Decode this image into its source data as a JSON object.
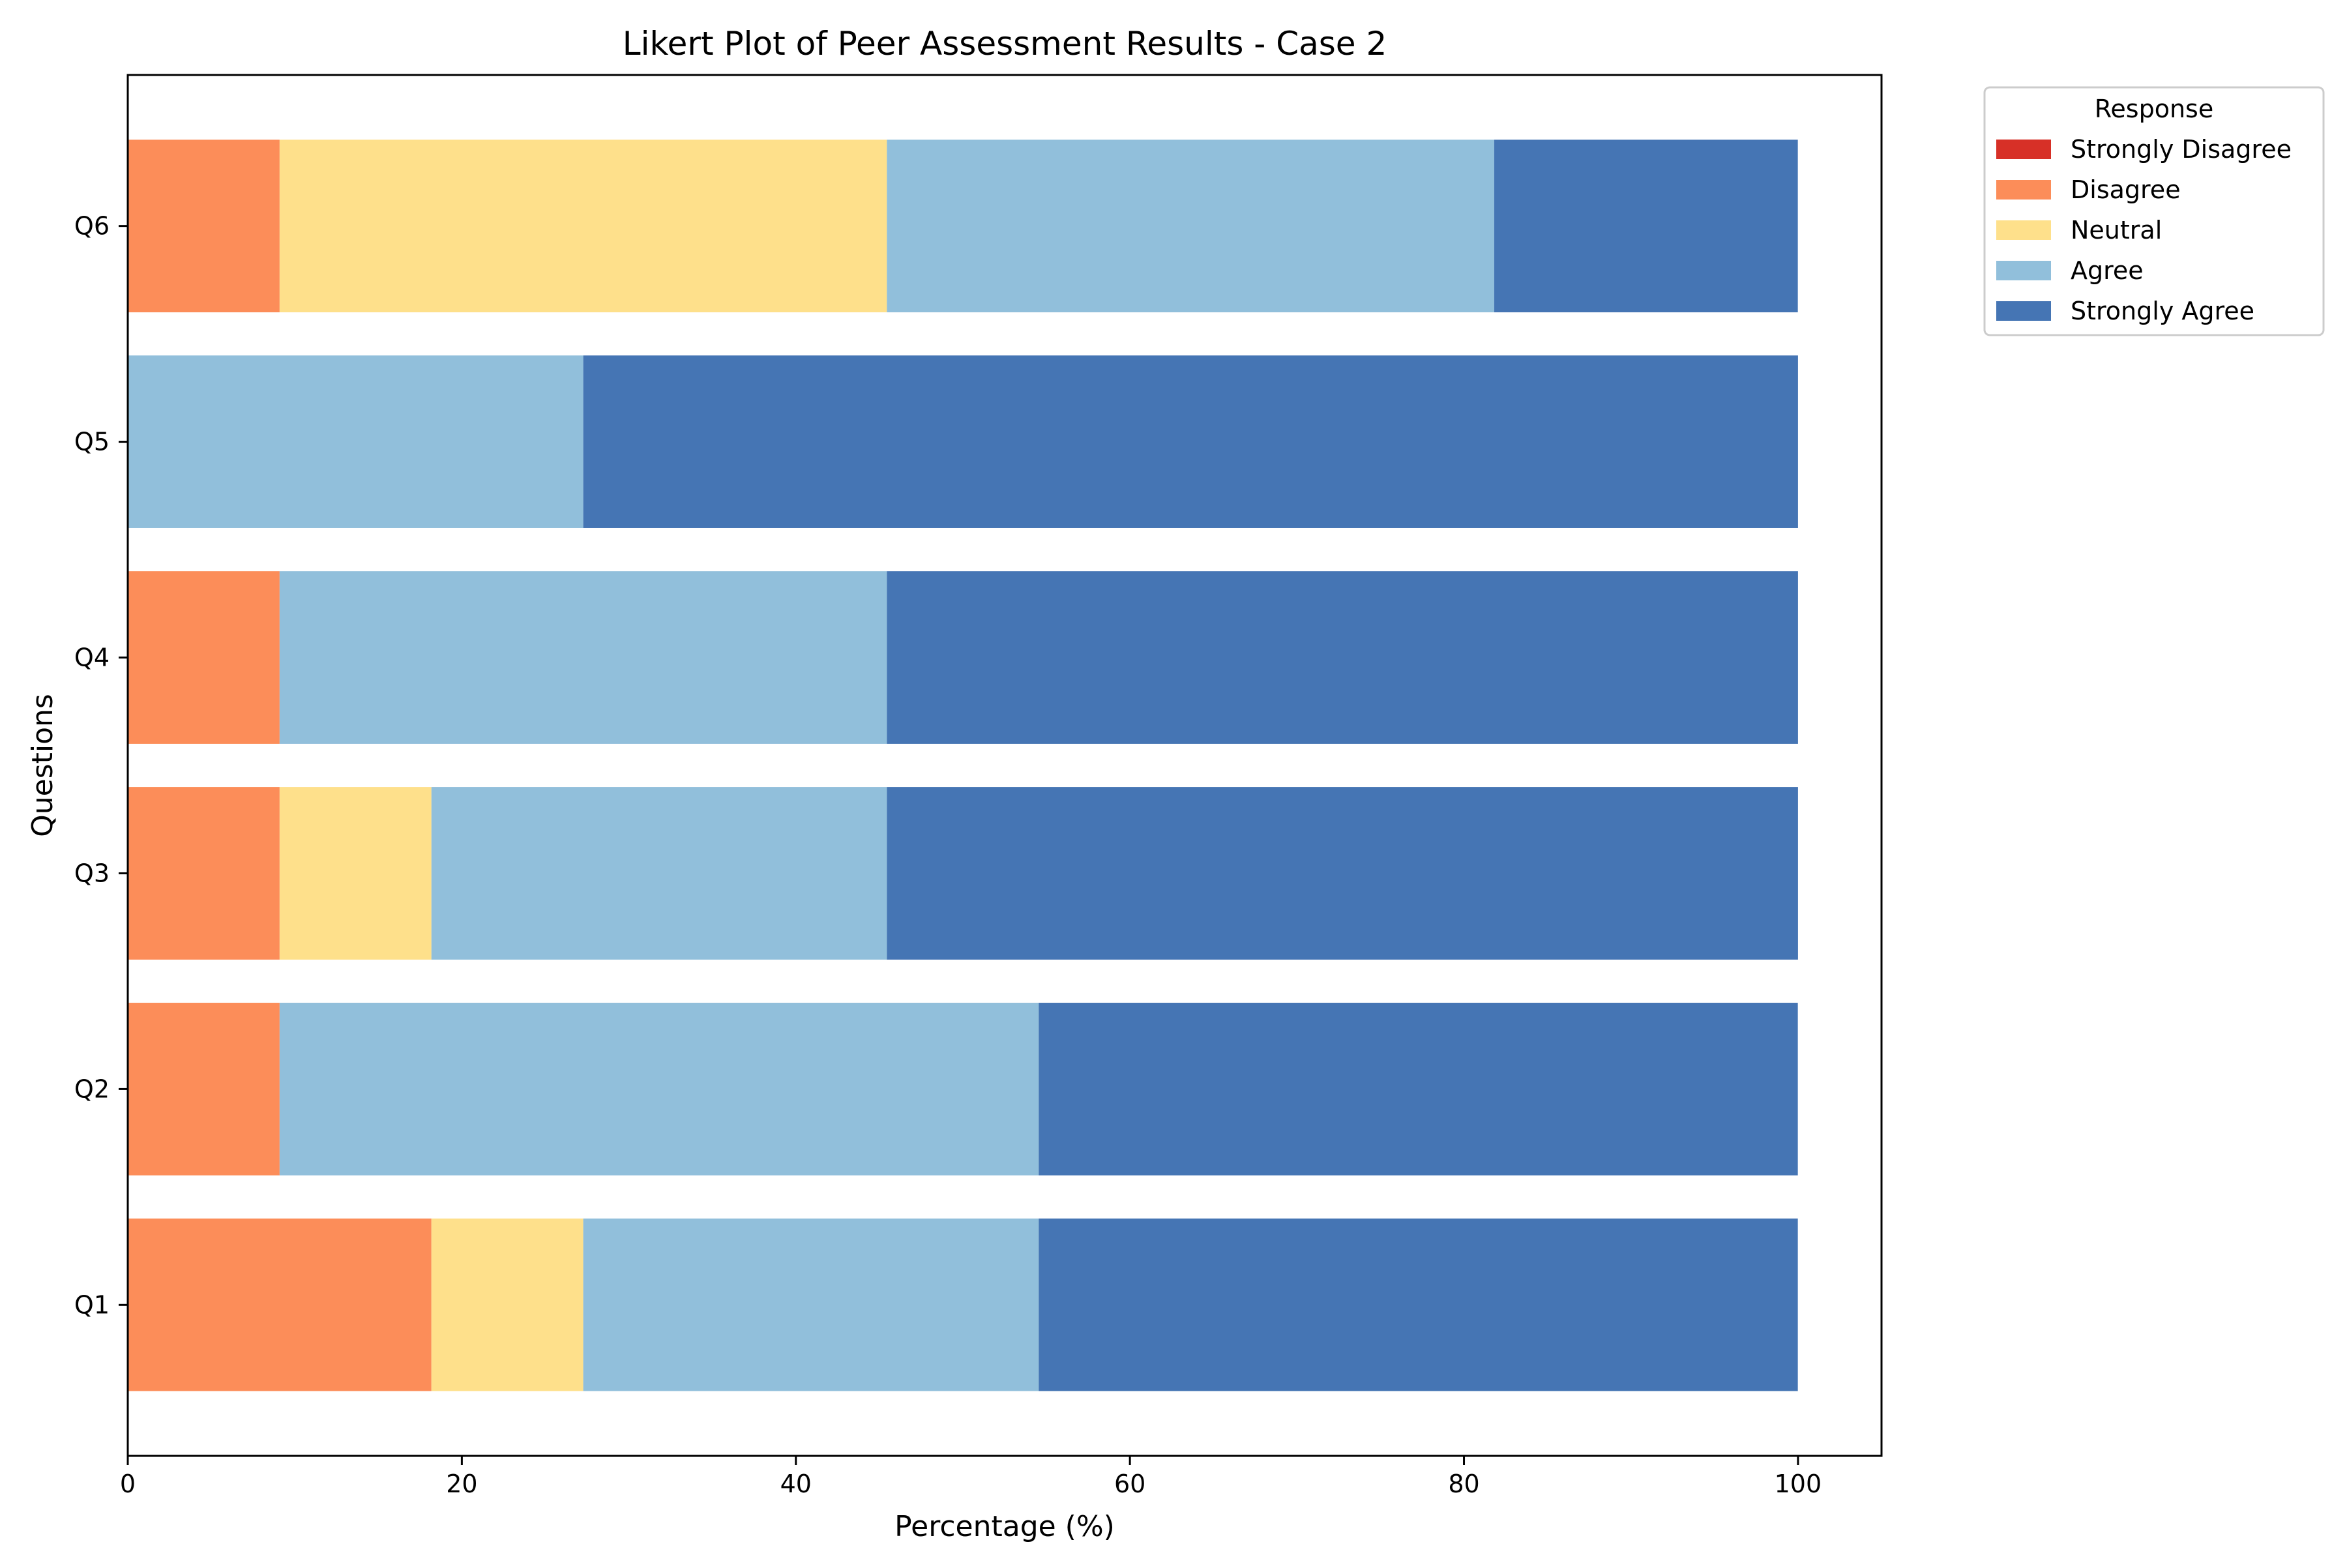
{
  "chart_data": {
    "type": "bar",
    "orientation": "horizontal",
    "stacked": true,
    "title": "Likert Plot of Peer Assessment Results - Case 2",
    "xlabel": "Percentage (%)",
    "ylabel": "Questions",
    "xlim": [
      0,
      105
    ],
    "xticks": [
      0,
      20,
      40,
      60,
      80,
      100
    ],
    "categories": [
      "Q1",
      "Q2",
      "Q3",
      "Q4",
      "Q5",
      "Q6"
    ],
    "series": [
      {
        "name": "Strongly Disagree",
        "color": "#d73027",
        "values": [
          0,
          0,
          0,
          0,
          0,
          0
        ]
      },
      {
        "name": "Disagree",
        "color": "#fc8d59",
        "values": [
          18.18,
          9.09,
          9.09,
          9.09,
          0,
          9.09
        ]
      },
      {
        "name": "Neutral",
        "color": "#fee08b",
        "values": [
          9.09,
          0,
          9.09,
          0,
          0,
          36.36
        ]
      },
      {
        "name": "Agree",
        "color": "#91bfdb",
        "values": [
          27.27,
          45.45,
          27.27,
          36.36,
          27.27,
          36.36
        ]
      },
      {
        "name": "Strongly Agree",
        "color": "#4575b4",
        "values": [
          45.45,
          45.45,
          54.55,
          54.55,
          72.73,
          18.18
        ]
      }
    ],
    "legend": {
      "title": "Response",
      "placement": "outside upper-right"
    },
    "grid": false
  }
}
